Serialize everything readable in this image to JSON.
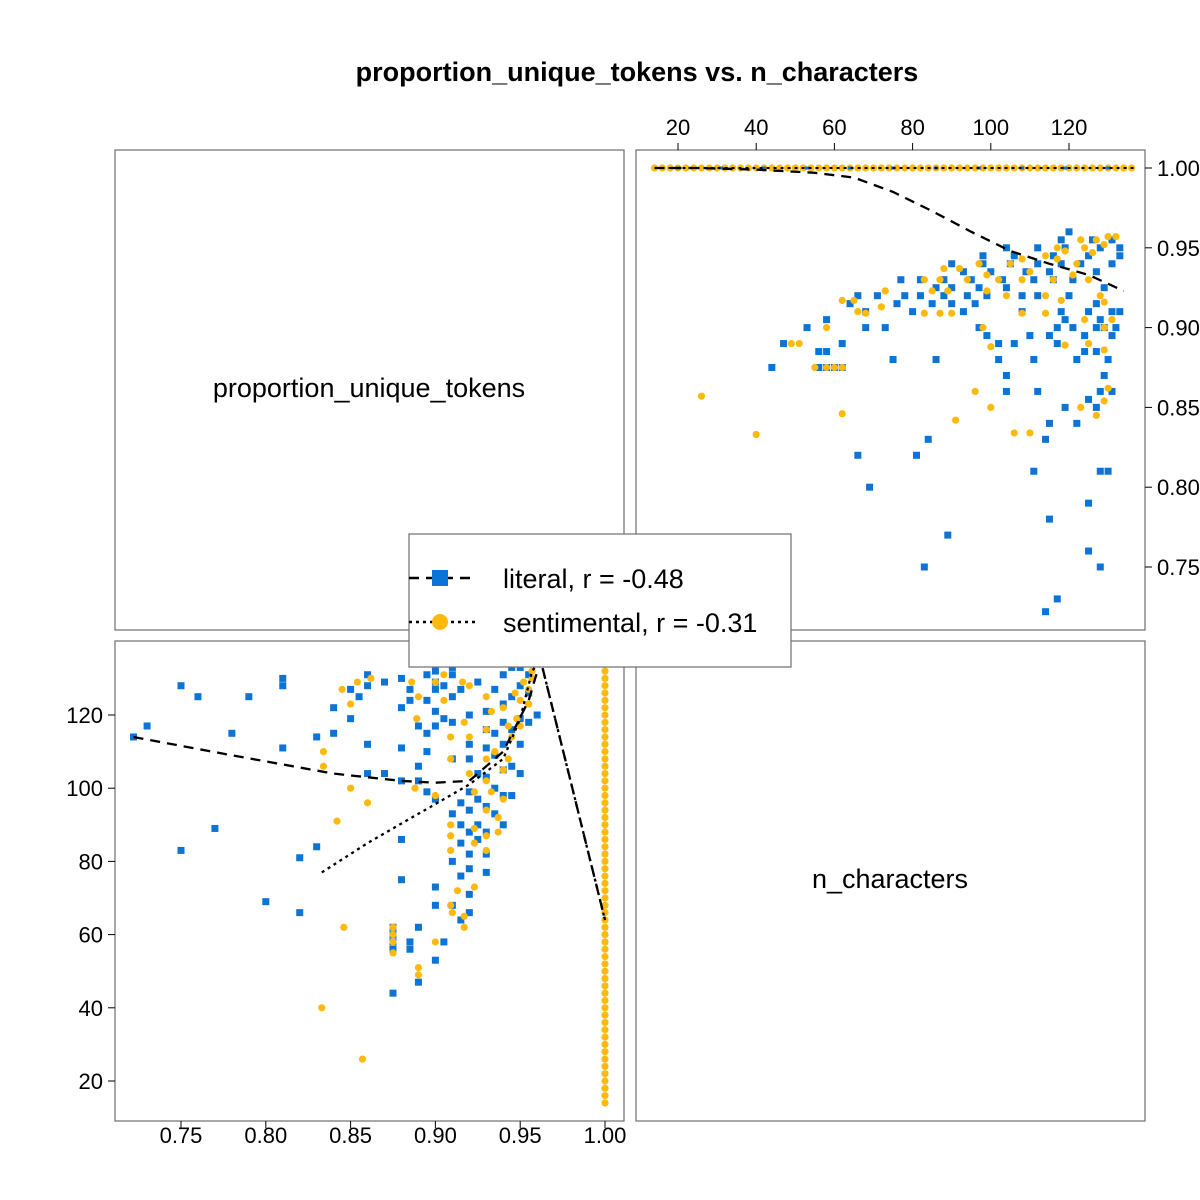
{
  "chart_data": {
    "type": "scatter",
    "title": "proportion_unique_tokens vs. n_characters",
    "variables": [
      "proportion_unique_tokens",
      "n_characters"
    ],
    "axes": {
      "proportion_unique_tokens": {
        "range": [
          0.72,
          1.005
        ],
        "ticks": [
          0.75,
          0.8,
          0.85,
          0.9,
          0.95,
          1.0
        ],
        "tick_labels": [
          "0.75",
          "0.80",
          "0.85",
          "0.90",
          "0.95",
          "1.00"
        ],
        "top_right_tick_labels": [
          "0.75",
          "0.80",
          "0.85",
          "0.90",
          "0.95",
          "1.00"
        ]
      },
      "n_characters": {
        "range": [
          10,
          138
        ],
        "ticks": [
          20,
          40,
          60,
          80,
          100,
          120
        ],
        "tick_labels": [
          "20",
          "40",
          "60",
          "80",
          "100",
          "120"
        ]
      }
    },
    "grid": false,
    "legend_position": "center",
    "series": [
      {
        "name": "literal",
        "legend_label": "literal, r = -0.48",
        "color": "#0B74D6",
        "marker": "square",
        "line": "dashed",
        "points": [
          [
            0.722,
            114
          ],
          [
            0.73,
            117
          ],
          [
            0.75,
            128
          ],
          [
            0.75,
            83
          ],
          [
            0.76,
            125
          ],
          [
            0.77,
            89
          ],
          [
            0.78,
            115
          ],
          [
            0.79,
            125
          ],
          [
            0.8,
            69
          ],
          [
            0.81,
            130
          ],
          [
            0.81,
            128
          ],
          [
            0.81,
            111
          ],
          [
            0.82,
            81
          ],
          [
            0.82,
            66
          ],
          [
            0.83,
            114
          ],
          [
            0.83,
            84
          ],
          [
            0.84,
            122
          ],
          [
            0.84,
            115
          ],
          [
            0.85,
            127
          ],
          [
            0.85,
            119
          ],
          [
            0.855,
            125
          ],
          [
            0.86,
            131
          ],
          [
            0.86,
            128
          ],
          [
            0.86,
            112
          ],
          [
            0.86,
            104
          ],
          [
            0.87,
            129
          ],
          [
            0.87,
            104
          ],
          [
            0.875,
            62
          ],
          [
            0.875,
            60
          ],
          [
            0.875,
            58
          ],
          [
            0.875,
            56
          ],
          [
            0.875,
            44
          ],
          [
            0.88,
            130
          ],
          [
            0.88,
            122
          ],
          [
            0.88,
            111
          ],
          [
            0.88,
            102
          ],
          [
            0.88,
            86
          ],
          [
            0.88,
            75
          ],
          [
            0.885,
            127
          ],
          [
            0.885,
            124
          ],
          [
            0.885,
            58
          ],
          [
            0.885,
            56
          ],
          [
            0.89,
            117
          ],
          [
            0.89,
            106
          ],
          [
            0.89,
            102
          ],
          [
            0.89,
            62
          ],
          [
            0.89,
            47
          ],
          [
            0.895,
            131
          ],
          [
            0.895,
            124
          ],
          [
            0.895,
            115
          ],
          [
            0.895,
            110
          ],
          [
            0.895,
            99
          ],
          [
            0.9,
            132
          ],
          [
            0.9,
            129
          ],
          [
            0.9,
            127
          ],
          [
            0.9,
            121
          ],
          [
            0.9,
            117
          ],
          [
            0.9,
            97
          ],
          [
            0.9,
            73
          ],
          [
            0.9,
            68
          ],
          [
            0.9,
            53
          ],
          [
            0.905,
            128
          ],
          [
            0.905,
            119
          ],
          [
            0.905,
            58
          ],
          [
            0.91,
            133
          ],
          [
            0.91,
            131
          ],
          [
            0.91,
            125
          ],
          [
            0.91,
            118
          ],
          [
            0.91,
            108
          ],
          [
            0.91,
            93
          ],
          [
            0.91,
            80
          ],
          [
            0.91,
            68
          ],
          [
            0.915,
            127
          ],
          [
            0.915,
            96
          ],
          [
            0.915,
            90
          ],
          [
            0.915,
            85
          ],
          [
            0.915,
            76
          ],
          [
            0.915,
            64
          ],
          [
            0.92,
            120
          ],
          [
            0.92,
            112
          ],
          [
            0.92,
            108
          ],
          [
            0.92,
            99
          ],
          [
            0.92,
            94
          ],
          [
            0.92,
            88
          ],
          [
            0.92,
            82
          ],
          [
            0.92,
            78
          ],
          [
            0.92,
            71
          ],
          [
            0.92,
            66
          ],
          [
            0.925,
            129
          ],
          [
            0.925,
            104
          ],
          [
            0.925,
            97
          ],
          [
            0.925,
            90
          ],
          [
            0.925,
            86
          ],
          [
            0.93,
            121
          ],
          [
            0.93,
            116
          ],
          [
            0.93,
            111
          ],
          [
            0.93,
            103
          ],
          [
            0.93,
            95
          ],
          [
            0.93,
            88
          ],
          [
            0.93,
            82
          ],
          [
            0.93,
            77
          ],
          [
            0.935,
            127
          ],
          [
            0.935,
            115
          ],
          [
            0.935,
            109
          ],
          [
            0.935,
            100
          ],
          [
            0.935,
            93
          ],
          [
            0.94,
            131
          ],
          [
            0.94,
            123
          ],
          [
            0.94,
            118
          ],
          [
            0.94,
            112
          ],
          [
            0.94,
            105
          ],
          [
            0.94,
            98
          ],
          [
            0.94,
            90
          ],
          [
            0.945,
            133
          ],
          [
            0.945,
            125
          ],
          [
            0.945,
            116
          ],
          [
            0.945,
            106
          ],
          [
            0.945,
            98
          ],
          [
            0.95,
            133
          ],
          [
            0.95,
            128
          ],
          [
            0.95,
            119
          ],
          [
            0.95,
            112
          ],
          [
            0.95,
            104
          ],
          [
            0.955,
            131
          ],
          [
            0.955,
            126
          ],
          [
            0.955,
            118
          ],
          [
            0.96,
            120
          ]
        ]
      },
      {
        "name": "sentimental",
        "legend_label": "sentimental, r = -0.31",
        "color": "#FDBA0C",
        "marker": "circle",
        "line": "dotted",
        "points": [
          [
            0.833,
            40
          ],
          [
            0.834,
            110
          ],
          [
            0.834,
            106
          ],
          [
            0.842,
            91
          ],
          [
            0.845,
            127
          ],
          [
            0.846,
            62
          ],
          [
            0.85,
            123
          ],
          [
            0.85,
            100
          ],
          [
            0.854,
            129
          ],
          [
            0.857,
            26
          ],
          [
            0.86,
            96
          ],
          [
            0.862,
            130
          ],
          [
            0.875,
            62
          ],
          [
            0.875,
            60
          ],
          [
            0.875,
            58
          ],
          [
            0.875,
            55
          ],
          [
            0.886,
            129
          ],
          [
            0.888,
            100
          ],
          [
            0.89,
            125
          ],
          [
            0.889,
            119
          ],
          [
            0.89,
            51
          ],
          [
            0.89,
            49
          ],
          [
            0.9,
            129
          ],
          [
            0.9,
            98
          ],
          [
            0.9,
            58
          ],
          [
            0.905,
            131
          ],
          [
            0.905,
            124
          ],
          [
            0.909,
            114
          ],
          [
            0.909,
            108
          ],
          [
            0.909,
            90
          ],
          [
            0.909,
            87
          ],
          [
            0.909,
            83
          ],
          [
            0.909,
            68
          ],
          [
            0.91,
            66
          ],
          [
            0.913,
            72
          ],
          [
            0.916,
            129
          ],
          [
            0.917,
            118
          ],
          [
            0.917,
            65
          ],
          [
            0.917,
            62
          ],
          [
            0.92,
            128
          ],
          [
            0.92,
            114
          ],
          [
            0.92,
            104
          ],
          [
            0.923,
            99
          ],
          [
            0.923,
            89
          ],
          [
            0.923,
            85
          ],
          [
            0.923,
            73
          ],
          [
            0.93,
            125
          ],
          [
            0.93,
            116
          ],
          [
            0.93,
            108
          ],
          [
            0.93,
            102
          ],
          [
            0.93,
            94
          ],
          [
            0.93,
            87
          ],
          [
            0.93,
            83
          ],
          [
            0.933,
            121
          ],
          [
            0.933,
            99
          ],
          [
            0.935,
            110
          ],
          [
            0.937,
            92
          ],
          [
            0.937,
            88
          ],
          [
            0.94,
            122
          ],
          [
            0.94,
            105
          ],
          [
            0.94,
            97
          ],
          [
            0.943,
            117
          ],
          [
            0.943,
            108
          ],
          [
            0.945,
            114
          ],
          [
            0.947,
            126
          ],
          [
            0.948,
            119
          ],
          [
            0.95,
            124
          ],
          [
            0.95,
            117
          ],
          [
            0.952,
            129
          ],
          [
            0.955,
            123
          ],
          [
            0.955,
            127
          ],
          [
            0.957,
            130
          ],
          [
            0.957,
            132
          ]
        ]
      }
    ],
    "constant_band": {
      "proportion_unique_tokens": 1.0,
      "n_characters_range": [
        14,
        137
      ],
      "color": "#FDBA0C",
      "overlap_color": "#0B74D6"
    },
    "smooth_lines": {
      "literal": [
        [
          0.722,
          114
        ],
        [
          0.78,
          109
        ],
        [
          0.84,
          104
        ],
        [
          0.88,
          102
        ],
        [
          0.9,
          101.5
        ],
        [
          0.92,
          102
        ],
        [
          0.94,
          110
        ],
        [
          0.955,
          124
        ],
        [
          0.962,
          135
        ],
        [
          1.0,
          64
        ]
      ],
      "sentimental": [
        [
          0.833,
          77
        ],
        [
          0.86,
          85
        ],
        [
          0.89,
          93
        ],
        [
          0.92,
          101
        ],
        [
          0.94,
          108
        ],
        [
          0.95,
          119
        ],
        [
          0.957,
          132
        ],
        [
          0.962,
          135
        ],
        [
          1.0,
          64
        ]
      ]
    }
  }
}
